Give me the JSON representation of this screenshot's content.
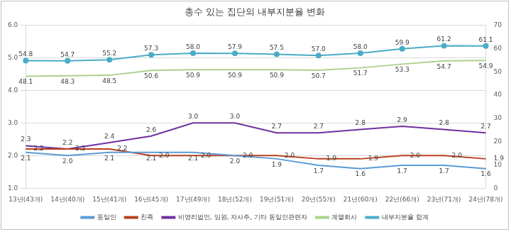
{
  "chart_data": {
    "type": "line",
    "title": "총수 있는 집단의 내부지분율 변화",
    "categories": [
      "13년(43개)",
      "14년(40개)",
      "15년(41개)",
      "16년(45개)",
      "17년(49개)",
      "18년(52개)",
      "19년(51개)",
      "20년(55개)",
      "21년(60개)",
      "22년(66개)",
      "23년(71개)",
      "24년(78개)"
    ],
    "series": [
      {
        "name": "동일인",
        "color": "#5b9bd5",
        "marker": "none",
        "values": [
          2.1,
          2.0,
          2.1,
          2.1,
          2.1,
          2.0,
          1.9,
          1.7,
          1.6,
          1.7,
          1.7,
          1.6
        ],
        "value_labels": [
          "2.1",
          "2.0",
          "2.1",
          "2.1",
          "2.1",
          "2.0",
          "1.9",
          "1.7",
          "1.6",
          "1.7",
          "1.7",
          "1.6"
        ]
      },
      {
        "name": "친족",
        "color": "#b8401e",
        "marker": "none",
        "values": [
          2.2,
          2.2,
          2.2,
          2.0,
          2.0,
          2.0,
          2.0,
          1.9,
          1.9,
          2.0,
          2.0,
          1.9
        ],
        "value_labels": [
          "2.2",
          "2.2",
          "2.2",
          "2.0",
          "2.0",
          "2.0",
          "2.0",
          "1.9",
          "1.9",
          "2.0",
          "2.0",
          "1.9"
        ]
      },
      {
        "name": "비영리법인, 임원, 자사주, 기타 동일인관련자",
        "color": "#7030a0",
        "marker": "none",
        "values": [
          2.3,
          2.2,
          2.4,
          2.6,
          3.0,
          3.0,
          2.7,
          2.7,
          2.8,
          2.9,
          2.8,
          2.7
        ],
        "value_labels": [
          "2.3",
          "2.2",
          "2.4",
          "2.6",
          "3.0",
          "3.0",
          "2.7",
          "2.7",
          "2.8",
          "2.9",
          "2.8",
          "2.7"
        ]
      },
      {
        "name": "계열회사",
        "color": "#a9d18e",
        "marker": "none",
        "axis": "y2",
        "values": [
          48.1,
          48.3,
          48.5,
          50.6,
          50.9,
          50.9,
          50.9,
          50.7,
          51.7,
          53.3,
          54.7,
          54.9
        ],
        "value_labels": [
          "48.1",
          "48.3",
          "48.5",
          "50.6",
          "50.9",
          "50.9",
          "50.9",
          "50.7",
          "51.7",
          "53.3",
          "54.7",
          "54.9"
        ]
      },
      {
        "name": "내부지분율 합계",
        "color": "#4bacc6",
        "marker": "circle",
        "axis": "y2",
        "values": [
          54.8,
          54.7,
          55.2,
          57.3,
          58.0,
          57.9,
          57.5,
          57.0,
          58.0,
          59.9,
          61.2,
          61.1
        ],
        "value_labels": [
          "54.8",
          "54.7",
          "55.2",
          "57.3",
          "58.0",
          "57.9",
          "57.5",
          "57.0",
          "58.0",
          "59.9",
          "61.2",
          "61.1"
        ]
      }
    ],
    "ylim": [
      1,
      6
    ],
    "yticks": [
      {
        "value": 1,
        "label": "1.0"
      },
      {
        "value": 2,
        "label": "2.0"
      },
      {
        "value": 3,
        "label": "3.0"
      },
      {
        "value": 4,
        "label": "4.0"
      },
      {
        "value": 5,
        "label": "5.0"
      },
      {
        "value": 6,
        "label": "6.0"
      }
    ],
    "y2lim": [
      0,
      70
    ],
    "y2ticks": [
      0,
      10,
      20,
      30,
      40,
      50,
      60,
      70
    ],
    "grid": true,
    "legend": "bottom",
    "data_labels": true
  }
}
